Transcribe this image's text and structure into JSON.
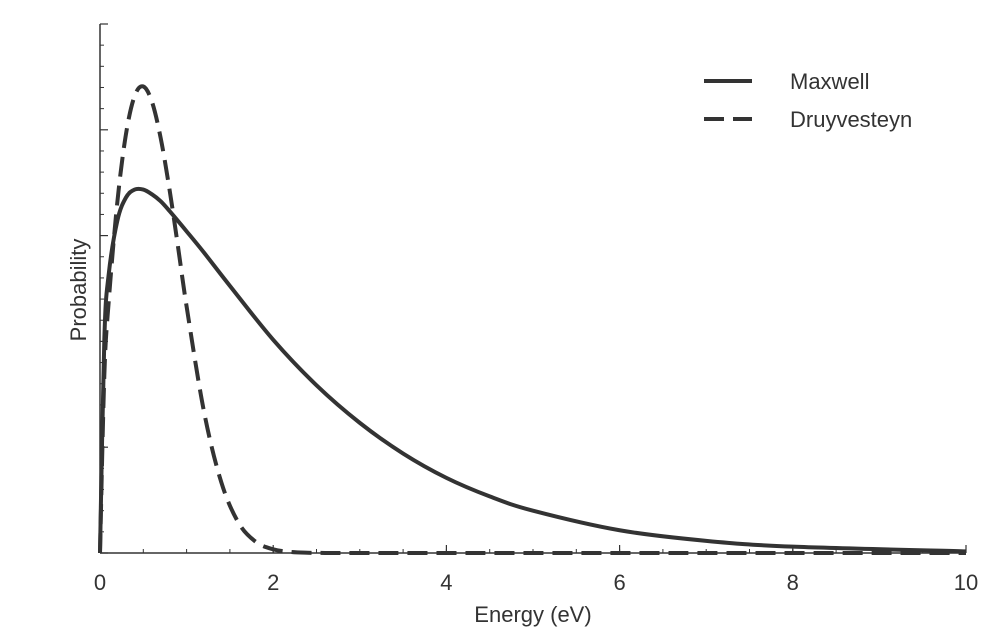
{
  "chart_data": {
    "type": "line",
    "title": "",
    "xlabel": "Energy (eV)",
    "ylabel": "Probability",
    "xlim": [
      0,
      10
    ],
    "ylim": [
      0,
      1
    ],
    "x_ticks": [
      0,
      2,
      4,
      6,
      8,
      10
    ],
    "x_tick_labels": [
      "0",
      "2",
      "4",
      "6",
      "8",
      "10"
    ],
    "grid": false,
    "legend_position": "top-right",
    "line_color": "#333333",
    "series": [
      {
        "name": "Maxwell",
        "style": "solid",
        "x": [
          0,
          0.05,
          0.1,
          0.2,
          0.3,
          0.4,
          0.5,
          0.6,
          0.7,
          0.8,
          1.0,
          1.2,
          1.5,
          2.0,
          2.5,
          3.0,
          3.5,
          4.0,
          4.5,
          5.0,
          6.0,
          7.0,
          8.0,
          10.0
        ],
        "y": [
          0,
          0.404,
          0.526,
          0.628,
          0.672,
          0.687,
          0.687,
          0.678,
          0.665,
          0.647,
          0.608,
          0.568,
          0.505,
          0.403,
          0.317,
          0.246,
          0.188,
          0.142,
          0.107,
          0.08,
          0.043,
          0.023,
          0.012,
          0.003
        ]
      },
      {
        "name": "Druyvesteyn",
        "style": "dashed",
        "x": [
          0,
          0.05,
          0.1,
          0.2,
          0.3,
          0.4,
          0.5,
          0.6,
          0.7,
          0.8,
          0.9,
          1.0,
          1.2,
          1.4,
          1.6,
          1.8,
          2.0,
          2.2,
          2.4,
          2.6,
          3.0,
          4.0,
          6.0,
          10.0
        ],
        "y": [
          0,
          0.336,
          0.474,
          0.663,
          0.792,
          0.864,
          0.882,
          0.853,
          0.785,
          0.69,
          0.58,
          0.466,
          0.268,
          0.134,
          0.057,
          0.021,
          0.007,
          0.002,
          0.0005,
          0.0001,
          0,
          0,
          0,
          0
        ]
      }
    ]
  }
}
